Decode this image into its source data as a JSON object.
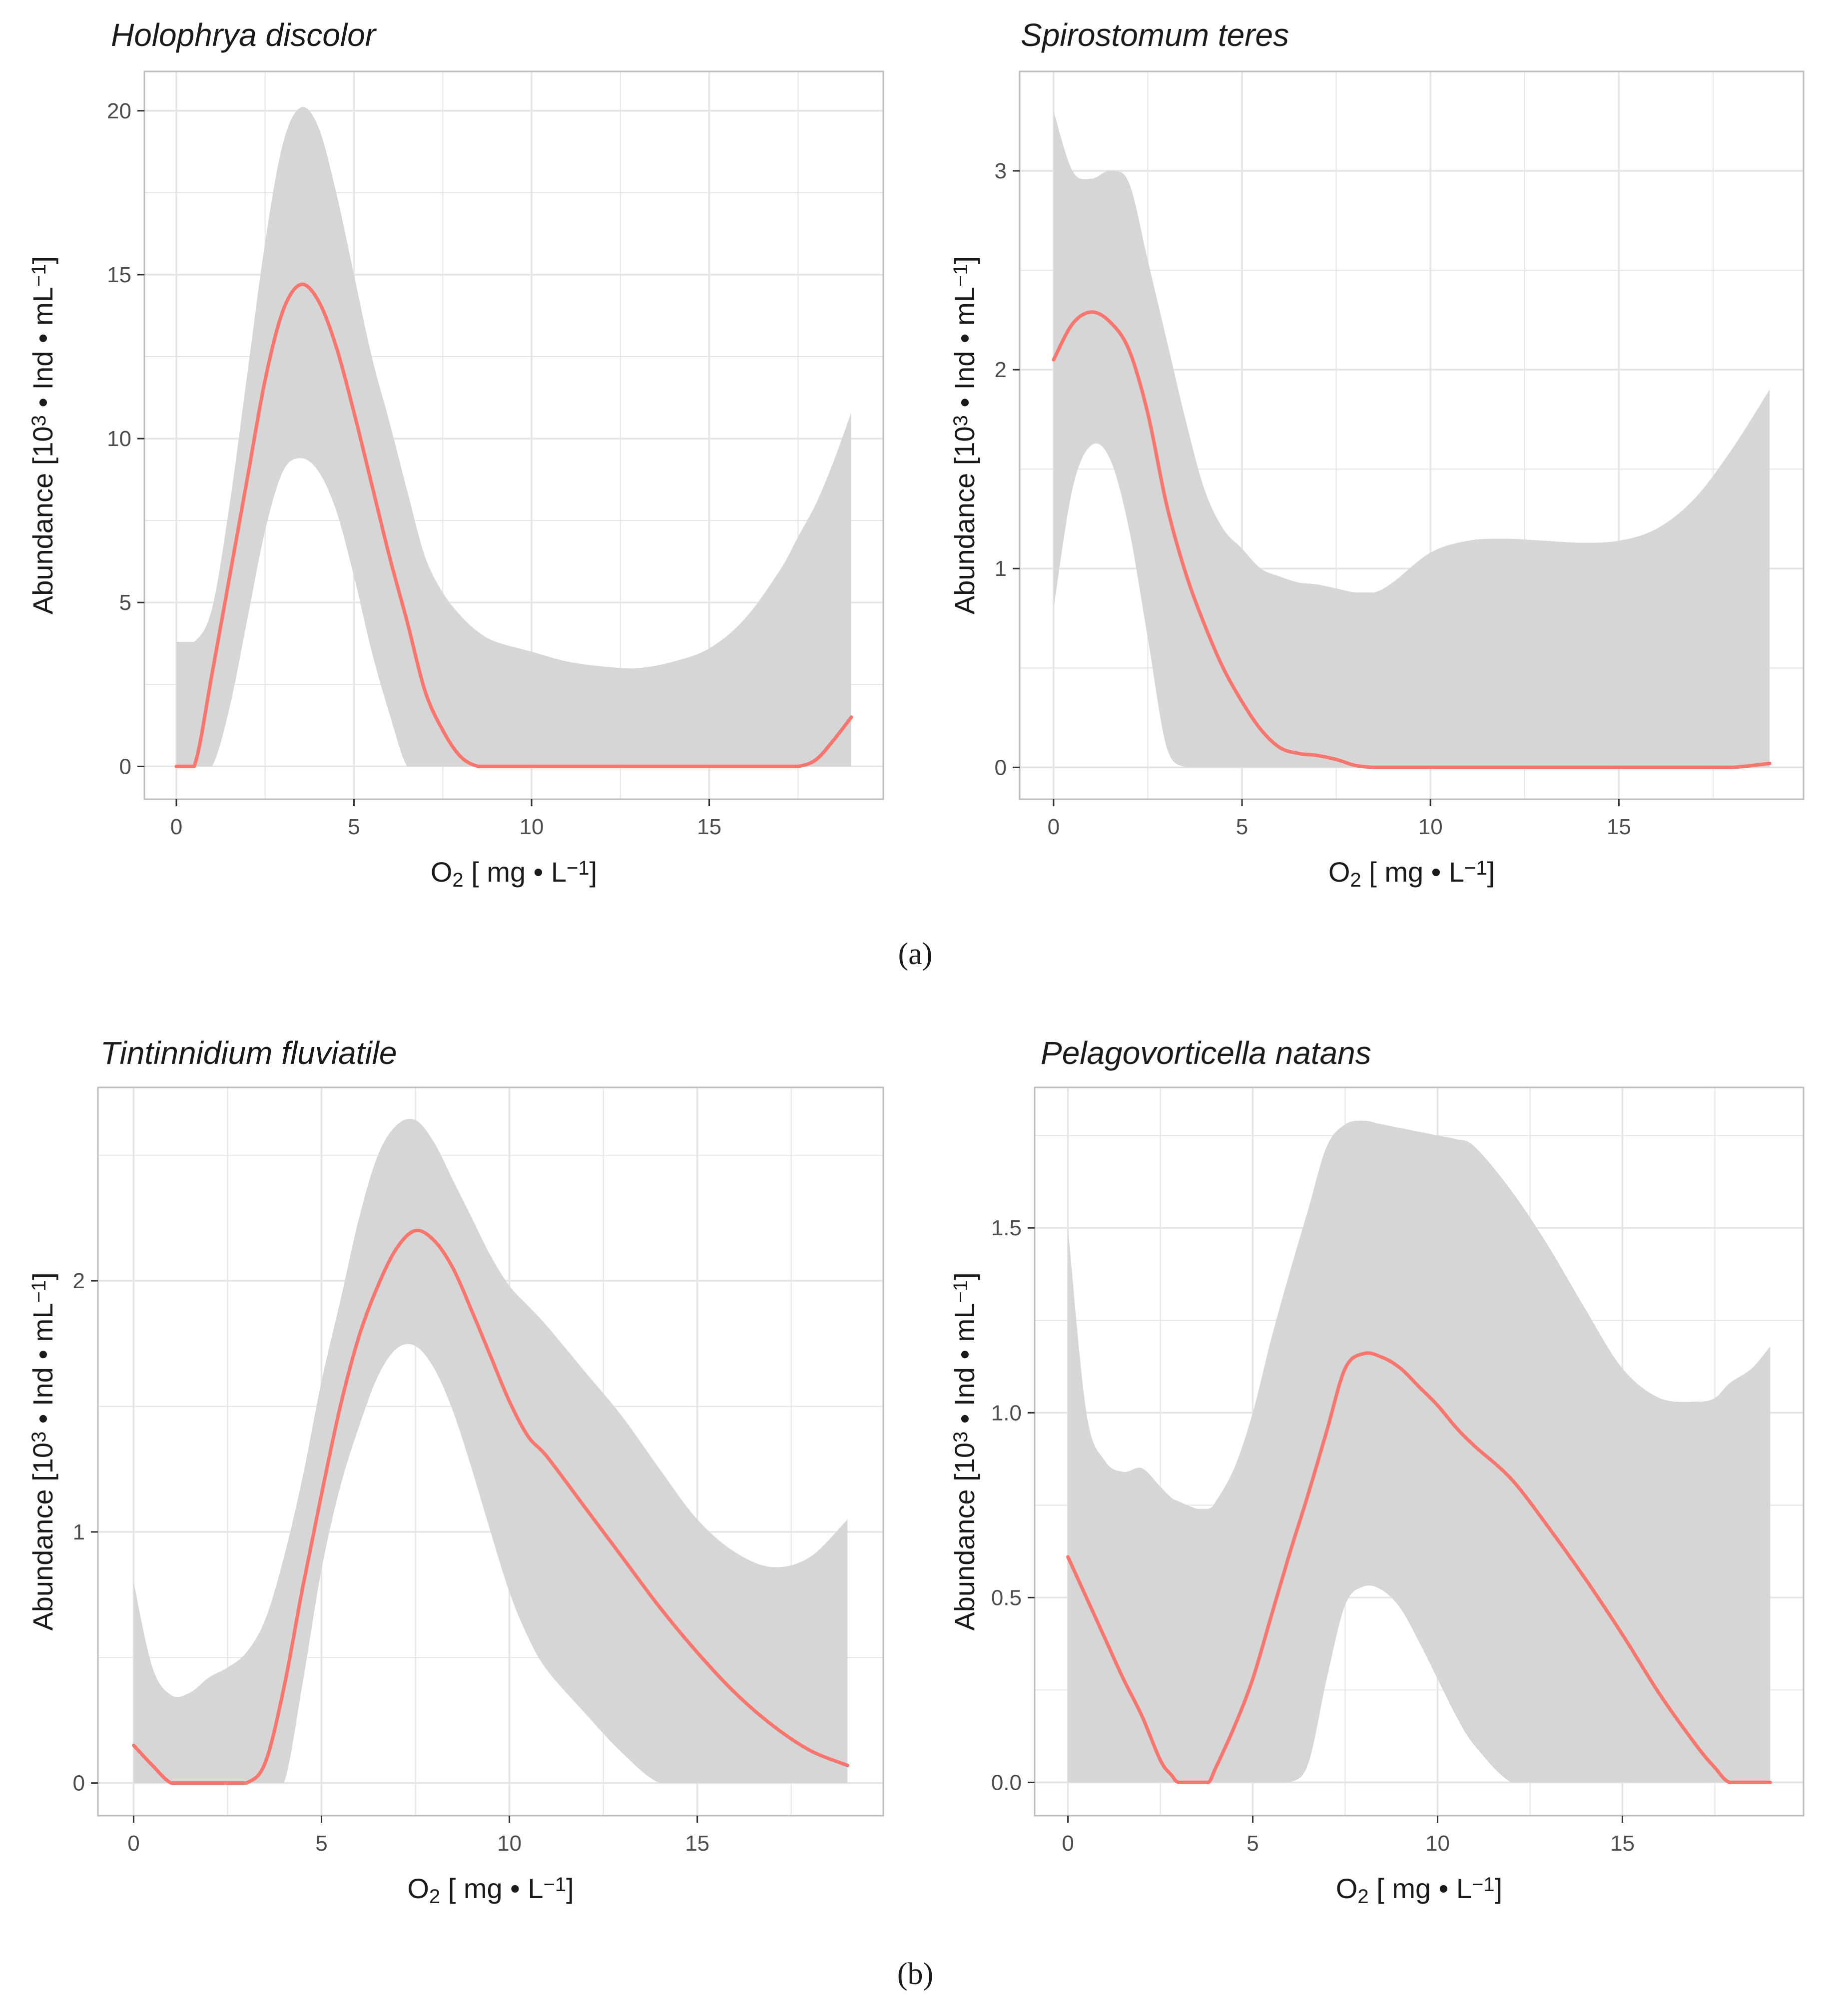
{
  "figure": {
    "row_labels": [
      "(a)",
      "(b)"
    ]
  },
  "colors": {
    "panel_bg": "#ffffff",
    "grid": "#e5e5e5",
    "panel_border": "#bdbdbd",
    "ribbon": "#d6d6d6",
    "line": "#f8766d",
    "text": "#1a1a1a",
    "tick_text": "#4d4d4d"
  },
  "chart_data": [
    {
      "type": "line",
      "title": "Holophrya discolor",
      "xlabel": "O2 [ mg • L⁻¹]",
      "ylabel": "Abundance [10³ • Ind • mL⁻¹]",
      "xlim": [
        -0.9,
        19.9
      ],
      "ylim": [
        -1.0,
        21.2
      ],
      "xticks": [
        0,
        5,
        10,
        15
      ],
      "xtick_labels": [
        "0",
        "5",
        "10",
        "15"
      ],
      "yticks": [
        0,
        5,
        10,
        15,
        20
      ],
      "ytick_labels": [
        "0",
        "5",
        "10",
        "15",
        "20"
      ],
      "grid": true,
      "series": [
        {
          "name": "fit",
          "x": [
            0,
            0.5,
            1,
            1.5,
            2,
            2.5,
            3,
            3.5,
            4,
            4.5,
            5,
            5.5,
            6,
            6.5,
            7,
            7.5,
            8,
            8.5,
            9,
            10,
            11,
            12,
            13,
            14,
            15,
            16,
            17,
            17.5,
            18,
            18.5,
            19
          ],
          "y": [
            0,
            0,
            2.8,
            5.8,
            8.8,
            11.8,
            13.9,
            14.7,
            14.2,
            12.8,
            10.8,
            8.6,
            6.4,
            4.4,
            2.3,
            1.1,
            0.3,
            0,
            0,
            0,
            0,
            0,
            0,
            0,
            0,
            0,
            0,
            0,
            0.2,
            0.8,
            1.5
          ],
          "ci_lower": [
            0,
            0,
            0,
            1.8,
            4.5,
            7.2,
            9.0,
            9.4,
            9.0,
            7.8,
            5.8,
            3.5,
            1.6,
            0,
            0,
            0,
            0,
            0,
            0,
            0,
            0,
            0,
            0,
            0,
            0,
            0,
            0,
            0,
            0,
            0,
            0
          ],
          "ci_upper": [
            3.8,
            3.8,
            4.8,
            8.0,
            12.0,
            16.0,
            19.0,
            20.1,
            19.5,
            17.5,
            15.0,
            12.5,
            10.5,
            8.4,
            6.4,
            5.3,
            4.6,
            4.1,
            3.8,
            3.5,
            3.2,
            3.05,
            3.0,
            3.2,
            3.6,
            4.5,
            6.0,
            7.0,
            8.0,
            9.3,
            10.8
          ]
        }
      ]
    },
    {
      "type": "line",
      "title": "Spirostomum teres",
      "xlabel": "O2 [ mg • L⁻¹]",
      "ylabel": "Abundance [10³ • Ind • mL⁻¹]",
      "xlim": [
        -0.9,
        19.9
      ],
      "ylim": [
        -0.16,
        3.5
      ],
      "xticks": [
        0,
        5,
        10,
        15
      ],
      "xtick_labels": [
        "0",
        "5",
        "10",
        "15"
      ],
      "yticks": [
        0,
        1,
        2,
        3
      ],
      "ytick_labels": [
        "0",
        "1",
        "2",
        "3"
      ],
      "grid": true,
      "series": [
        {
          "name": "fit",
          "x": [
            0,
            0.5,
            1,
            1.5,
            2,
            2.5,
            3,
            3.5,
            4,
            4.5,
            5,
            5.5,
            6,
            6.5,
            7,
            7.5,
            8,
            8.5,
            9,
            10,
            11,
            12,
            13,
            14,
            15,
            16,
            17,
            18,
            19
          ],
          "y": [
            2.05,
            2.23,
            2.29,
            2.24,
            2.1,
            1.78,
            1.32,
            0.98,
            0.72,
            0.5,
            0.33,
            0.19,
            0.1,
            0.07,
            0.06,
            0.04,
            0.01,
            0,
            0,
            0,
            0,
            0,
            0,
            0,
            0,
            0,
            0,
            0,
            0.02
          ],
          "ci_lower": [
            0.8,
            1.4,
            1.62,
            1.55,
            1.2,
            0.65,
            0.1,
            0,
            0,
            0,
            0,
            0,
            0,
            0,
            0,
            0,
            0,
            0,
            0,
            0,
            0,
            0,
            0,
            0,
            0,
            0,
            0,
            0,
            0
          ],
          "ci_upper": [
            3.3,
            3.0,
            2.96,
            3.0,
            2.94,
            2.55,
            2.15,
            1.75,
            1.4,
            1.2,
            1.1,
            1.0,
            0.96,
            0.93,
            0.92,
            0.9,
            0.88,
            0.88,
            0.93,
            1.08,
            1.14,
            1.15,
            1.14,
            1.13,
            1.14,
            1.2,
            1.35,
            1.6,
            1.9
          ]
        }
      ]
    },
    {
      "type": "line",
      "title": "Tintinnidium fluviatile",
      "xlabel": "O2 [ mg • L⁻¹]",
      "ylabel": "Abundance [10³ • Ind • mL⁻¹]",
      "xlim": [
        -0.95,
        19.95
      ],
      "ylim": [
        -0.13,
        2.77
      ],
      "xticks": [
        0,
        5,
        10,
        15
      ],
      "xtick_labels": [
        "0",
        "5",
        "10",
        "15"
      ],
      "yticks": [
        0,
        1,
        2
      ],
      "ytick_labels": [
        "0",
        "1",
        "2"
      ],
      "grid": true,
      "series": [
        {
          "name": "fit",
          "x": [
            0,
            0.5,
            1,
            1.5,
            2,
            2.5,
            3,
            3.5,
            4,
            4.5,
            5,
            5.5,
            6,
            6.5,
            7,
            7.5,
            8,
            8.5,
            9,
            9.5,
            10,
            10.5,
            11,
            12,
            13,
            14,
            15,
            16,
            17,
            18,
            19
          ],
          "y": [
            0.15,
            0.07,
            0,
            0,
            0,
            0,
            0,
            0.08,
            0.38,
            0.78,
            1.15,
            1.5,
            1.78,
            1.98,
            2.13,
            2.2,
            2.16,
            2.05,
            1.88,
            1.7,
            1.52,
            1.38,
            1.3,
            1.1,
            0.9,
            0.7,
            0.52,
            0.36,
            0.23,
            0.13,
            0.07
          ],
          "ci_lower": [
            0,
            0,
            0,
            0,
            0,
            0,
            0,
            0,
            0,
            0.4,
            0.85,
            1.18,
            1.42,
            1.62,
            1.73,
            1.74,
            1.65,
            1.48,
            1.25,
            1.0,
            0.76,
            0.58,
            0.45,
            0.28,
            0.12,
            0,
            0,
            0,
            0,
            0,
            0
          ],
          "ci_upper": [
            0.8,
            0.46,
            0.35,
            0.36,
            0.42,
            0.46,
            0.52,
            0.65,
            0.9,
            1.22,
            1.6,
            1.92,
            2.25,
            2.5,
            2.62,
            2.64,
            2.55,
            2.4,
            2.25,
            2.1,
            1.98,
            1.9,
            1.82,
            1.64,
            1.46,
            1.25,
            1.05,
            0.92,
            0.86,
            0.9,
            1.05
          ]
        }
      ]
    },
    {
      "type": "line",
      "title": "Pelagovorticella natans",
      "xlabel": "O2 [ mg • L⁻¹]",
      "ylabel": "Abundance [10³ • Ind • mL⁻¹]",
      "xlim": [
        -0.9,
        19.9
      ],
      "ylim": [
        -0.09,
        1.88
      ],
      "xticks": [
        0,
        5,
        10,
        15
      ],
      "xtick_labels": [
        "0",
        "5",
        "10",
        "15"
      ],
      "yticks": [
        0.0,
        0.5,
        1.0,
        1.5
      ],
      "ytick_labels": [
        "0.0",
        "0.5",
        "1.0",
        "1.5"
      ],
      "grid": true,
      "series": [
        {
          "name": "fit",
          "x": [
            0,
            0.5,
            1,
            1.5,
            2,
            2.5,
            2.8,
            3,
            3.5,
            3.8,
            4,
            4.5,
            5,
            5.5,
            6,
            6.5,
            7,
            7.5,
            8,
            8.5,
            9,
            9.5,
            10,
            10.5,
            11,
            12,
            13,
            14,
            15,
            16,
            17,
            17.5,
            17.9,
            18.5,
            19
          ],
          "y": [
            0.61,
            0.5,
            0.39,
            0.28,
            0.18,
            0.06,
            0.02,
            0,
            0,
            0,
            0.04,
            0.15,
            0.28,
            0.45,
            0.62,
            0.78,
            0.95,
            1.12,
            1.16,
            1.15,
            1.12,
            1.07,
            1.02,
            0.96,
            0.91,
            0.82,
            0.69,
            0.55,
            0.4,
            0.24,
            0.1,
            0.04,
            0,
            0,
            0
          ],
          "ci_lower": [
            0,
            0,
            0,
            0,
            0,
            0,
            0,
            0,
            0,
            0,
            0,
            0,
            0,
            0,
            0,
            0.05,
            0.28,
            0.48,
            0.53,
            0.52,
            0.47,
            0.38,
            0.28,
            0.18,
            0.1,
            0,
            0,
            0,
            0,
            0,
            0,
            0,
            0,
            0,
            0
          ],
          "ci_upper": [
            1.5,
            1.0,
            0.87,
            0.84,
            0.85,
            0.8,
            0.77,
            0.76,
            0.74,
            0.74,
            0.76,
            0.85,
            1.0,
            1.2,
            1.38,
            1.55,
            1.72,
            1.78,
            1.79,
            1.78,
            1.77,
            1.76,
            1.75,
            1.74,
            1.72,
            1.6,
            1.45,
            1.28,
            1.12,
            1.04,
            1.03,
            1.04,
            1.08,
            1.12,
            1.18
          ]
        }
      ]
    }
  ]
}
